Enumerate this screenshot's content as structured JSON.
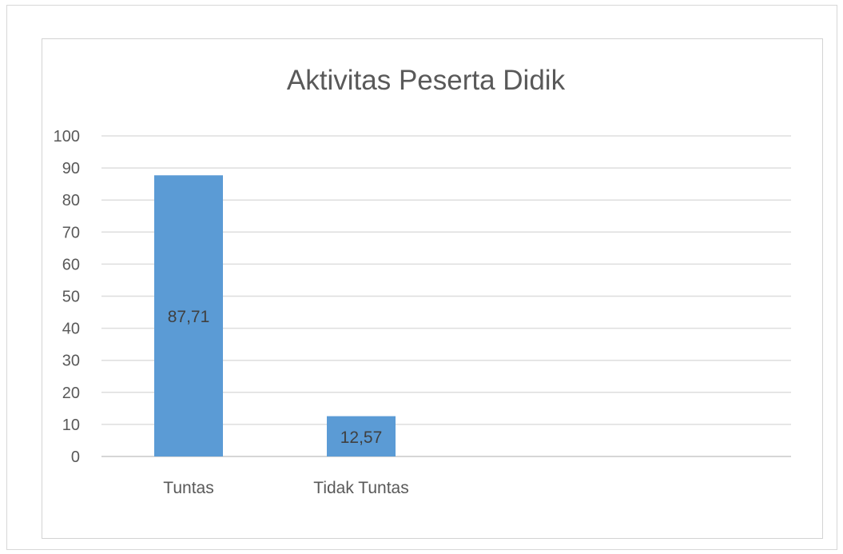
{
  "chart_data": {
    "type": "bar",
    "title": "Aktivitas Peserta Didik",
    "categories": [
      "Tuntas",
      "Tidak Tuntas"
    ],
    "values": [
      87.71,
      12.57
    ],
    "data_labels": [
      "87,71",
      "12,57"
    ],
    "ylim": [
      0,
      100
    ],
    "yticks": [
      "0",
      "10",
      "20",
      "30",
      "40",
      "50",
      "60",
      "70",
      "80",
      "90",
      "100"
    ],
    "xlabel": "",
    "ylabel": "",
    "grid": true,
    "legend": "none",
    "bar_color": "#5b9bd5"
  }
}
